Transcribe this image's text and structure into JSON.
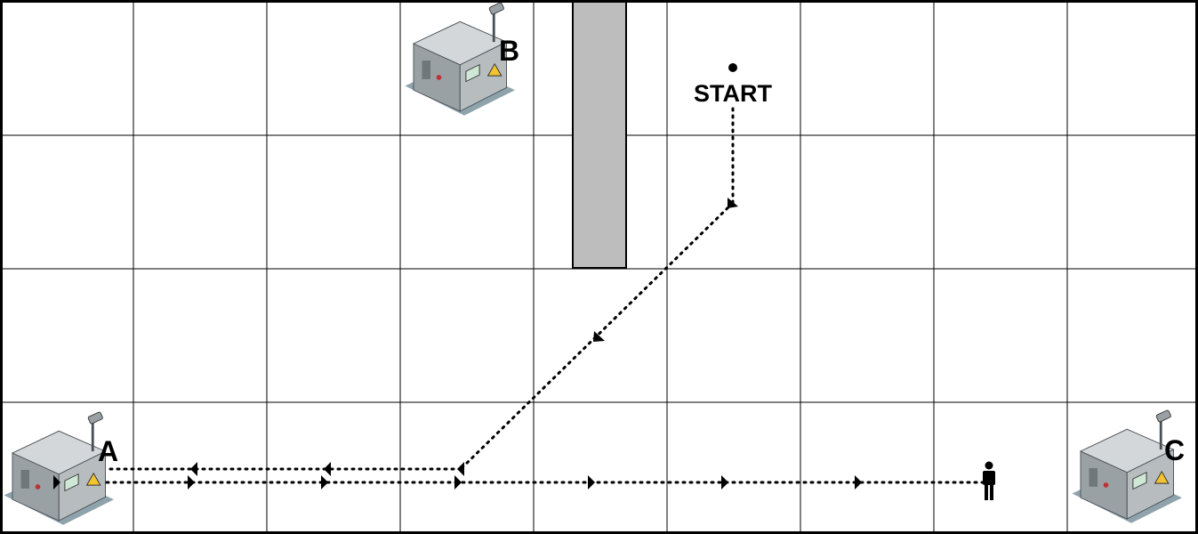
{
  "labels": {
    "start": "START",
    "machine_a": "A",
    "machine_b": "B",
    "machine_c": "C"
  },
  "grid": {
    "columns": 9,
    "rows": 4
  },
  "colors": {
    "grid_line": "#000000",
    "wall": "#bdbdbd",
    "machine_body": "#b7bcbf",
    "machine_dark": "#6f777b",
    "floor_shadow": "#8fa3ad",
    "screen": "#cfe8d6",
    "warning": "#f2c230",
    "path": "#000000"
  }
}
